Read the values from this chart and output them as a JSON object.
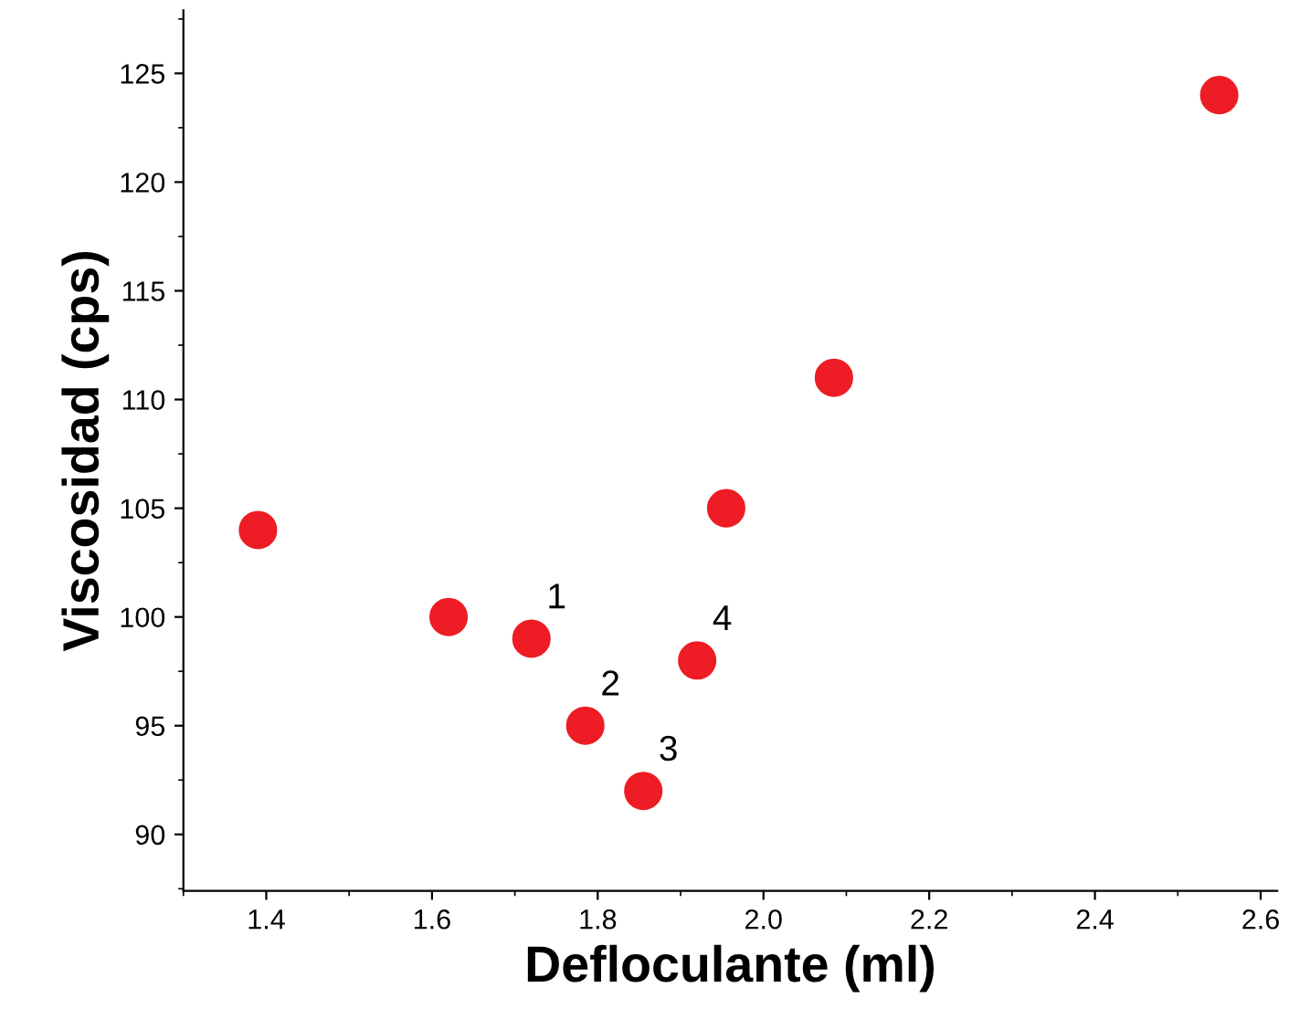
{
  "chart_data": {
    "type": "scatter",
    "xlabel": "Defloculante (ml)",
    "ylabel": "Viscosidad (cps)",
    "x": [
      1.39,
      1.62,
      1.72,
      1.785,
      1.855,
      1.92,
      1.955,
      2.085,
      2.55
    ],
    "series": [
      {
        "color": "#ee1c24",
        "values": [
          104,
          100,
          99,
          95,
          92,
          98,
          105,
          111,
          124
        ]
      }
    ],
    "marker": "circle",
    "grid": false,
    "legend": false,
    "xlim": [
      1.3,
      2.62
    ],
    "ylim": [
      87.4,
      127.9
    ],
    "xticks": [
      {
        "value": 1.4,
        "label": "1.4"
      },
      {
        "value": 1.6,
        "label": "1.6"
      },
      {
        "value": 1.8,
        "label": "1.8"
      },
      {
        "value": 2.0,
        "label": "2.0"
      },
      {
        "value": 2.2,
        "label": "2.2"
      },
      {
        "value": 2.4,
        "label": "2.4"
      },
      {
        "value": 2.6,
        "label": "2.6"
      }
    ],
    "yticks": [
      90,
      95,
      100,
      105,
      110,
      115,
      120,
      125
    ],
    "annotations": [
      {
        "text": "1",
        "x": 1.72,
        "y": 99
      },
      {
        "text": "2",
        "x": 1.785,
        "y": 95
      },
      {
        "text": "3",
        "x": 1.855,
        "y": 92
      },
      {
        "text": "4",
        "x": 1.92,
        "y": 98
      }
    ]
  }
}
